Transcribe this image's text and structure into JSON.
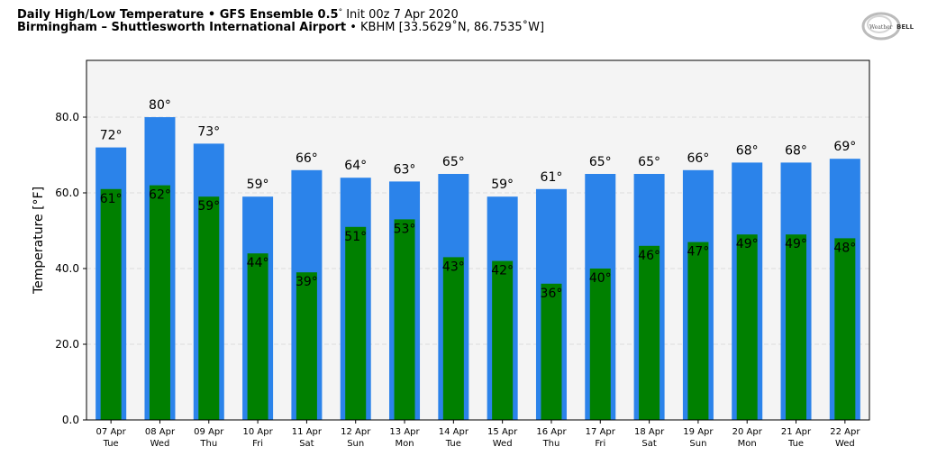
{
  "header": {
    "line1_bold": "Daily High/Low Temperature • GFS Ensemble 0.5",
    "line1_degree": "°",
    "line1_rest": " Init 00z 7 Apr 2020",
    "line2_bold": "Birmingham – Shuttlesworth International Airport",
    "line2_rest": " • KBHM [33.5629˚N, 86.7535˚W]"
  },
  "logo": {
    "text_left": "Weather",
    "text_right": "BELL"
  },
  "chart_data": {
    "type": "bar",
    "ylabel": "Temperature [°F]",
    "ylim": [
      0,
      95
    ],
    "yticks": [
      0,
      20,
      40,
      60,
      80
    ],
    "ytick_labels": [
      "0.0",
      "20.0",
      "40.0",
      "60.0",
      "80.0"
    ],
    "grid": true,
    "categories": [
      "07 Apr",
      "08 Apr",
      "09 Apr",
      "10 Apr",
      "11 Apr",
      "12 Apr",
      "13 Apr",
      "14 Apr",
      "15 Apr",
      "16 Apr",
      "17 Apr",
      "18 Apr",
      "19 Apr",
      "20 Apr",
      "21 Apr",
      "22 Apr"
    ],
    "days": [
      "Tue",
      "Wed",
      "Thu",
      "Fri",
      "Sat",
      "Sun",
      "Mon",
      "Tue",
      "Wed",
      "Thu",
      "Fri",
      "Sat",
      "Sun",
      "Mon",
      "Tue",
      "Wed"
    ],
    "series": [
      {
        "values": [
          72,
          80,
          73,
          59,
          66,
          64,
          63,
          65,
          59,
          61,
          65,
          65,
          66,
          68,
          68,
          69
        ],
        "labels": [
          "72°",
          "80°",
          "73°",
          "59°",
          "66°",
          "64°",
          "63°",
          "65°",
          "59°",
          "61°",
          "65°",
          "65°",
          "66°",
          "68°",
          "68°",
          "69°"
        ],
        "color": "#2b83ea"
      },
      {
        "values": [
          61,
          62,
          59,
          44,
          39,
          51,
          53,
          43,
          42,
          36,
          40,
          46,
          47,
          49,
          49,
          48
        ],
        "labels": [
          "61°",
          "62°",
          "59°",
          "44°",
          "39°",
          "51°",
          "53°",
          "43°",
          "42°",
          "36°",
          "40°",
          "46°",
          "47°",
          "49°",
          "49°",
          "48°"
        ],
        "color": "#008000"
      }
    ],
    "plot_background": "#f4f4f4",
    "grid_color": "#dddddd"
  }
}
